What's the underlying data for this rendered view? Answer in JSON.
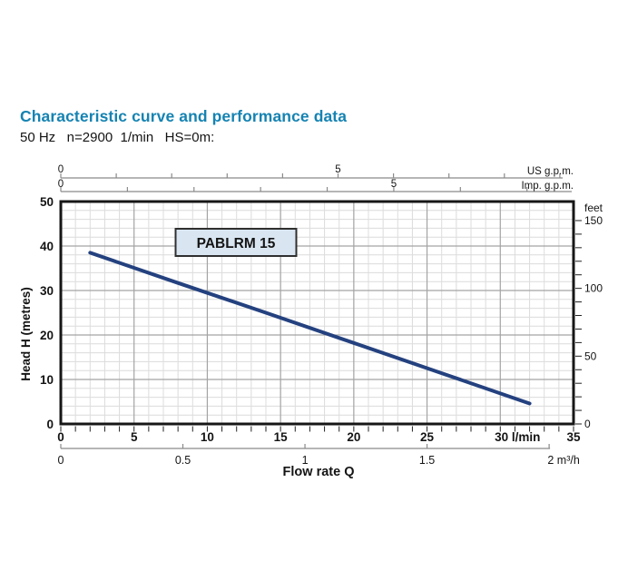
{
  "header": {
    "title": "Characteristic curve and performance data",
    "subtitle": "50 Hz   n=2900  1/min   HS=0m:"
  },
  "colors": {
    "title_accent": "#1583b2",
    "curve": "#24417f",
    "series_box_fill": "#d9e6f2",
    "series_box_border": "#2f2f2f",
    "grid_minor": "#dcdcdc",
    "grid_major": "#a3a3a3",
    "plot_border": "#161616",
    "axis_line": "#8a8a8a",
    "tick_mark": "#222222",
    "text": "#141414"
  },
  "chart_data": {
    "type": "line",
    "title": "PABLRM 15",
    "grid": true,
    "legend_position": "inline-box-top-left",
    "x_axis": {
      "label": "Flow rate Q",
      "unit": "l/min",
      "min": 0,
      "max": 35,
      "minor_step": 1,
      "ticks": [
        {
          "v": 0,
          "t": "0"
        },
        {
          "v": 5,
          "t": "5"
        },
        {
          "v": 10,
          "t": "10"
        },
        {
          "v": 15,
          "t": "15"
        },
        {
          "v": 20,
          "t": "20"
        },
        {
          "v": 25,
          "t": "25"
        },
        {
          "v": 30,
          "t": "30 l/min",
          "dx": 19
        },
        {
          "v": 35,
          "t": "35"
        }
      ]
    },
    "x_m3h": {
      "unit": "m³/h",
      "lmin_per_unit": 16.667,
      "ticks": [
        {
          "v": 0,
          "t": "0"
        },
        {
          "v": 0.5,
          "t": "0.5"
        },
        {
          "v": 1,
          "t": "1"
        },
        {
          "v": 1.5,
          "t": "1.5"
        },
        {
          "v": 2,
          "t": "2 m³/h",
          "dx": 16
        }
      ]
    },
    "x_top_us": {
      "unit_label": "US g.p.m.",
      "lmin_per_unit": 3.785,
      "minor_step": 1,
      "labeled_ticks": [
        {
          "v": 0,
          "t": "0"
        },
        {
          "v": 5,
          "t": "5"
        }
      ]
    },
    "x_top_imp": {
      "unit_label": "Imp. g.p.m.",
      "lmin_per_unit": 4.546,
      "minor_step": 1,
      "labeled_ticks": [
        {
          "v": 0,
          "t": "0"
        },
        {
          "v": 5,
          "t": "5"
        }
      ]
    },
    "y_axis": {
      "label": "Head H (metres)",
      "min": 0,
      "max": 50,
      "minor_step": 2,
      "ticks": [
        {
          "v": 0,
          "t": "0"
        },
        {
          "v": 10,
          "t": "10"
        },
        {
          "v": 20,
          "t": "20"
        },
        {
          "v": 30,
          "t": "30"
        },
        {
          "v": 40,
          "t": "40"
        },
        {
          "v": 50,
          "t": "50"
        }
      ]
    },
    "y_right": {
      "unit_label": "feet",
      "m_per_unit": 0.3048,
      "minor_step": 10,
      "max": 150,
      "labeled_ticks": [
        {
          "v": 0,
          "t": "0"
        },
        {
          "v": 50,
          "t": "50"
        },
        {
          "v": 100,
          "t": "100"
        },
        {
          "v": 150,
          "t": "150"
        }
      ]
    },
    "series": [
      {
        "name": "PABLRM 15",
        "points": [
          [
            2,
            38.5
          ],
          [
            8,
            31.7
          ],
          [
            14,
            25.0
          ],
          [
            20,
            18.2
          ],
          [
            26,
            11.4
          ],
          [
            32,
            4.6
          ]
        ]
      }
    ]
  }
}
